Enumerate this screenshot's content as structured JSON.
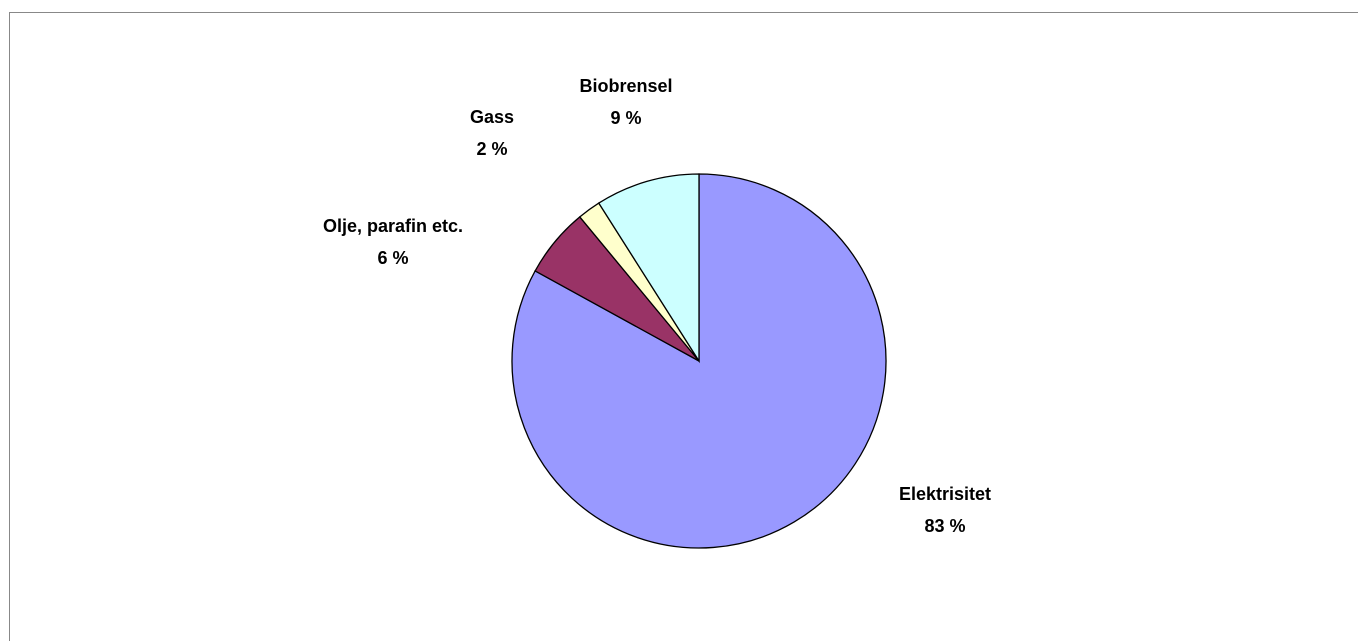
{
  "chart_data": {
    "type": "pie",
    "categories": [
      "Elektrisitet",
      "Olje, parafin etc.",
      "Gass",
      "Biobrensel"
    ],
    "values": [
      83,
      6,
      2,
      9
    ],
    "value_labels": [
      "83 %",
      "6 %",
      "2 %",
      "9 %"
    ],
    "colors": [
      "#9999ff",
      "#993366",
      "#ffffcc",
      "#ccffff"
    ]
  }
}
